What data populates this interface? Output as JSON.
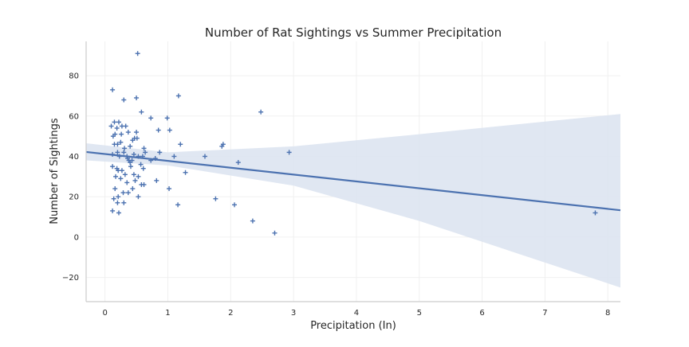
{
  "chart_data": {
    "type": "scatter",
    "title": "Number of Rat Sightings vs Summer Precipitation",
    "xlabel": "Precipitation (In)",
    "ylabel": "Number of Sightings",
    "xlim": [
      -0.3,
      8.2
    ],
    "ylim": [
      -32,
      97
    ],
    "xticks": [
      0,
      1,
      2,
      3,
      4,
      5,
      6,
      7,
      8
    ],
    "yticks": [
      -20,
      0,
      20,
      40,
      60,
      80
    ],
    "grid": true,
    "marker": "plus",
    "point_color": "#4c72b0",
    "regression": {
      "color": "#4c72b0",
      "band_color": "#dbe3f0",
      "line": [
        [
          -0.3,
          42.2
        ],
        [
          8.2,
          13.3
        ]
      ],
      "ci_upper": [
        [
          -0.3,
          46.5
        ],
        [
          1.0,
          42.0
        ],
        [
          3.0,
          45.0
        ],
        [
          5.0,
          51.0
        ],
        [
          8.2,
          61.0
        ]
      ],
      "ci_lower": [
        [
          -0.3,
          38.0
        ],
        [
          1.0,
          35.5
        ],
        [
          3.0,
          25.5
        ],
        [
          5.0,
          8.0
        ],
        [
          8.2,
          -25.0
        ]
      ]
    },
    "points": [
      [
        0.52,
        91
      ],
      [
        0.12,
        73
      ],
      [
        1.17,
        70
      ],
      [
        0.5,
        69
      ],
      [
        0.3,
        68
      ],
      [
        0.58,
        62
      ],
      [
        2.48,
        62
      ],
      [
        0.15,
        57
      ],
      [
        0.22,
        57
      ],
      [
        0.33,
        55
      ],
      [
        0.1,
        55
      ],
      [
        0.99,
        59
      ],
      [
        0.73,
        59
      ],
      [
        0.27,
        55
      ],
      [
        0.19,
        54
      ],
      [
        0.37,
        52
      ],
      [
        0.85,
        53
      ],
      [
        1.03,
        53
      ],
      [
        0.16,
        51
      ],
      [
        0.26,
        51
      ],
      [
        0.13,
        50
      ],
      [
        0.5,
        52
      ],
      [
        0.47,
        49
      ],
      [
        0.51,
        49
      ],
      [
        0.44,
        48
      ],
      [
        0.25,
        47
      ],
      [
        0.15,
        46
      ],
      [
        0.2,
        46
      ],
      [
        0.31,
        44
      ],
      [
        0.4,
        45
      ],
      [
        0.62,
        44
      ],
      [
        1.2,
        46
      ],
      [
        1.88,
        46
      ],
      [
        1.86,
        45
      ],
      [
        0.3,
        42
      ],
      [
        0.2,
        42
      ],
      [
        0.12,
        41
      ],
      [
        0.23,
        40
      ],
      [
        0.35,
        40
      ],
      [
        0.38,
        38
      ],
      [
        0.36,
        39
      ],
      [
        0.43,
        38
      ],
      [
        0.4,
        37
      ],
      [
        0.46,
        41
      ],
      [
        0.6,
        40
      ],
      [
        0.64,
        42
      ],
      [
        0.53,
        40
      ],
      [
        0.87,
        42
      ],
      [
        0.73,
        38
      ],
      [
        0.8,
        39
      ],
      [
        1.1,
        40
      ],
      [
        1.59,
        40
      ],
      [
        2.93,
        42
      ],
      [
        0.41,
        35
      ],
      [
        0.57,
        36
      ],
      [
        0.61,
        34
      ],
      [
        0.12,
        35
      ],
      [
        0.19,
        34
      ],
      [
        0.27,
        33
      ],
      [
        0.21,
        33
      ],
      [
        0.32,
        31
      ],
      [
        0.46,
        31
      ],
      [
        0.17,
        30
      ],
      [
        0.25,
        29
      ],
      [
        0.53,
        30
      ],
      [
        0.48,
        28
      ],
      [
        0.35,
        27
      ],
      [
        0.82,
        28
      ],
      [
        2.12,
        37
      ],
      [
        1.28,
        32
      ],
      [
        0.62,
        26
      ],
      [
        0.58,
        26
      ],
      [
        0.16,
        24
      ],
      [
        0.37,
        22
      ],
      [
        0.44,
        24
      ],
      [
        0.29,
        22
      ],
      [
        0.21,
        20
      ],
      [
        0.53,
        20
      ],
      [
        0.14,
        19
      ],
      [
        0.3,
        17
      ],
      [
        0.2,
        17
      ],
      [
        1.02,
        24
      ],
      [
        1.76,
        19
      ],
      [
        1.16,
        16
      ],
      [
        2.06,
        16
      ],
      [
        0.12,
        13
      ],
      [
        0.22,
        12
      ],
      [
        2.35,
        8
      ],
      [
        2.7,
        2
      ],
      [
        7.8,
        12
      ]
    ]
  }
}
